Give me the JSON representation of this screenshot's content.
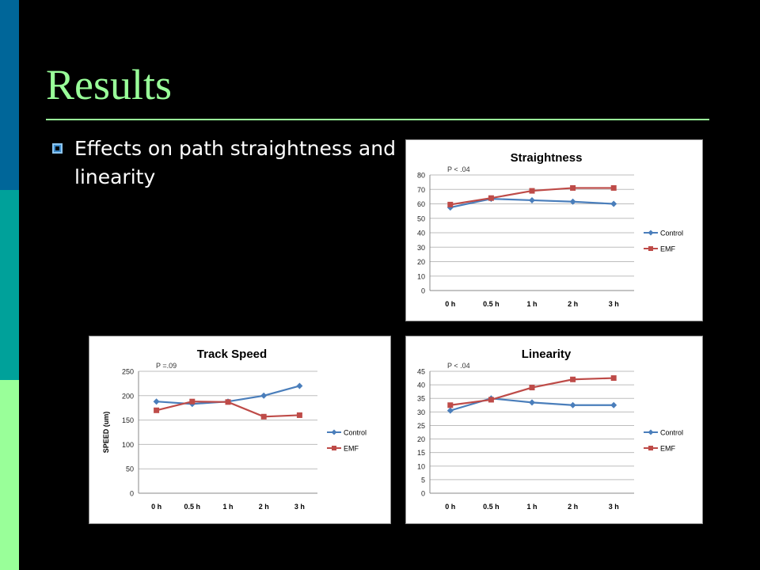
{
  "slide": {
    "title": "Results",
    "bullet": "Effects on path straightness and linearity",
    "colors": {
      "title": "#99ff99",
      "background": "#000000",
      "stripe_top": "#006699",
      "stripe_mid": "#00a19a",
      "stripe_bottom": "#99ff99",
      "bullet": "#3a88c8"
    }
  },
  "chart_data": [
    {
      "type": "line",
      "title": "Straightness",
      "annotation": "P < .04",
      "ylabel": "",
      "categories": [
        "0 h",
        "0.5 h",
        "1 h",
        "2 h",
        "3 h"
      ],
      "ylim": [
        0,
        80
      ],
      "yticks": [
        0,
        10,
        20,
        30,
        40,
        50,
        60,
        70,
        80
      ],
      "legend_position": "right",
      "series": [
        {
          "name": "Control",
          "color": "#4a7ebb",
          "marker": "diamond",
          "values": [
            57.5,
            63.5,
            62.5,
            61.5,
            60
          ]
        },
        {
          "name": "EMF",
          "color": "#be4b48",
          "marker": "square",
          "values": [
            59.5,
            64,
            69,
            71,
            71
          ]
        }
      ]
    },
    {
      "type": "line",
      "title": "Track Speed",
      "annotation": "P =.09",
      "ylabel": "SPEED (um)",
      "categories": [
        "0 h",
        "0.5 h",
        "1 h",
        "2 h",
        "3 h"
      ],
      "ylim": [
        0,
        250
      ],
      "yticks": [
        0,
        50,
        100,
        150,
        200,
        250
      ],
      "legend_position": "right",
      "series": [
        {
          "name": "Control",
          "color": "#4a7ebb",
          "marker": "diamond",
          "values": [
            188,
            183,
            188,
            200,
            220
          ]
        },
        {
          "name": "EMF",
          "color": "#be4b48",
          "marker": "square",
          "values": [
            170,
            188,
            187,
            157,
            160
          ]
        }
      ]
    },
    {
      "type": "line",
      "title": "Linearity",
      "annotation": "P < .04",
      "ylabel": "",
      "categories": [
        "0 h",
        "0.5 h",
        "1 h",
        "2 h",
        "3 h"
      ],
      "ylim": [
        0,
        45
      ],
      "yticks": [
        0,
        5,
        10,
        15,
        20,
        25,
        30,
        35,
        40,
        45
      ],
      "legend_position": "right",
      "series": [
        {
          "name": "Control",
          "color": "#4a7ebb",
          "marker": "diamond",
          "values": [
            30.5,
            35,
            33.5,
            32.5,
            32.5
          ]
        },
        {
          "name": "EMF",
          "color": "#be4b48",
          "marker": "square",
          "values": [
            32.5,
            34.5,
            39,
            42,
            42.5
          ]
        }
      ]
    }
  ]
}
